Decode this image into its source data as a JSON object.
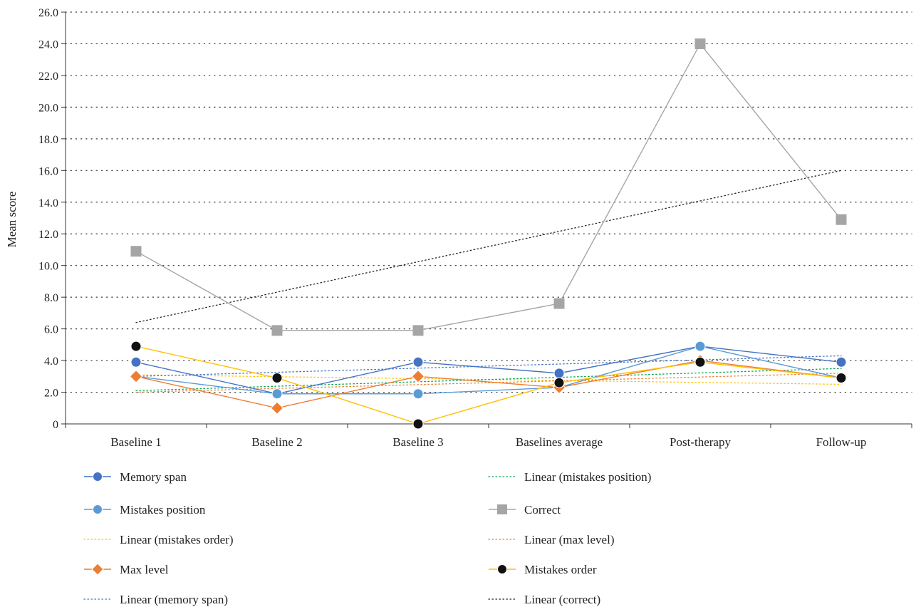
{
  "chart_data": {
    "type": "line",
    "title": "",
    "xlabel": "",
    "ylabel": "Mean score",
    "ylim": [
      0,
      26
    ],
    "y_ticks": [
      "0",
      "2.0",
      "4.0",
      "6.0",
      "8.0",
      "10.0",
      "12.0",
      "14.0",
      "16.0",
      "18.0",
      "20.0",
      "22.0",
      "24.0",
      "26.0"
    ],
    "categories": [
      "Baseline 1",
      "Baseline 2",
      "Baseline 3",
      "Baselines average",
      "Post-therapy",
      "Follow-up"
    ],
    "grid": "horizontal dotted",
    "legend_position": "bottom",
    "series": [
      {
        "name": "Memory span",
        "values": [
          3.9,
          1.9,
          3.9,
          3.2,
          4.9,
          3.9
        ],
        "color": "#4472C4",
        "marker": "circle"
      },
      {
        "name": "Mistakes position",
        "values": [
          3.0,
          1.9,
          1.9,
          2.3,
          4.9,
          2.9
        ],
        "color": "#5B9BD5",
        "marker": "circle"
      },
      {
        "name": "Max level",
        "values": [
          3.0,
          1.0,
          3.0,
          2.3,
          4.0,
          2.9
        ],
        "color": "#ED7D31",
        "marker": "diamond"
      },
      {
        "name": "Correct",
        "values": [
          10.9,
          5.9,
          5.9,
          7.6,
          24.0,
          12.9
        ],
        "color": "#A5A5A5",
        "marker": "square"
      },
      {
        "name": "Mistakes order",
        "values": [
          4.9,
          2.9,
          0,
          2.6,
          3.9,
          2.9
        ],
        "color": "#FFC000",
        "marker": "circle",
        "marker_color": "#111111"
      }
    ],
    "trendlines": [
      {
        "name": "Linear (mistakes order)",
        "start": 3.1,
        "end": 2.5,
        "color": "#FFC000"
      },
      {
        "name": "Linear (memory span)",
        "start": 3.0,
        "end": 4.3,
        "color": "#4472C4"
      },
      {
        "name": "Linear (mistakes position)",
        "start": 2.1,
        "end": 3.5,
        "color": "#00A650"
      },
      {
        "name": "Linear (max level)",
        "start": 2.0,
        "end": 3.2,
        "color": "#ED7D31"
      },
      {
        "name": "Linear (correct)",
        "start": 6.4,
        "end": 16.0,
        "color": "#222222"
      }
    ],
    "legend": [
      {
        "label": "Memory span",
        "kind": "line-marker",
        "color": "#4472C4",
        "marker": "circle"
      },
      {
        "label": "Mistakes position",
        "kind": "line-marker",
        "color": "#5B9BD5",
        "marker": "circle"
      },
      {
        "label": "Linear (mistakes order)",
        "kind": "dotted",
        "color": "#FFC000"
      },
      {
        "label": "Max level",
        "kind": "line-marker",
        "color": "#ED7D31",
        "marker": "diamond"
      },
      {
        "label": "Linear (memory span)",
        "kind": "dotted",
        "color": "#4472C4"
      },
      {
        "label": "Linear (mistakes position)",
        "kind": "dotted",
        "color": "#00A650"
      },
      {
        "label": "Correct",
        "kind": "line-marker",
        "color": "#A5A5A5",
        "marker": "square"
      },
      {
        "label": "Linear (max level)",
        "kind": "dotted",
        "color": "#ED7D31"
      },
      {
        "label": "Mistakes order",
        "kind": "line-marker",
        "color": "#FFC000",
        "marker": "circle",
        "marker_color": "#111111"
      },
      {
        "label": "Linear (correct)",
        "kind": "dotted",
        "color": "#222222"
      }
    ]
  }
}
